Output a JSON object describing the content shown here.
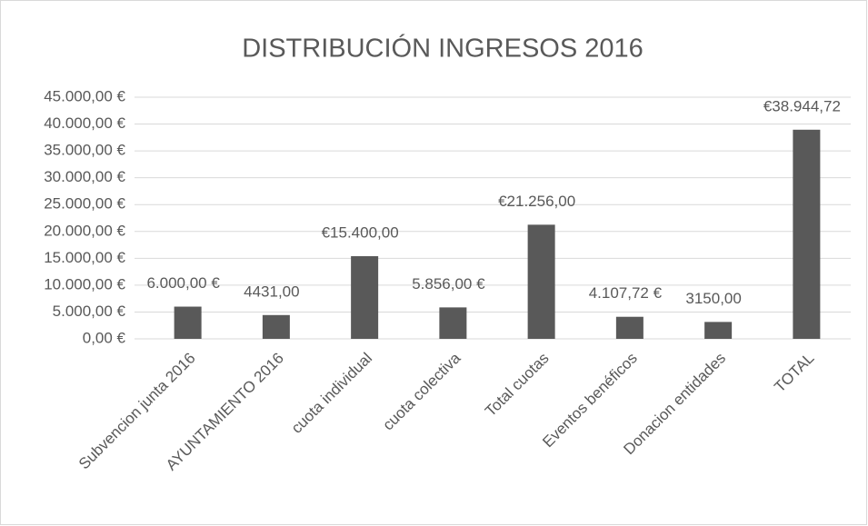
{
  "chart_data": {
    "type": "bar",
    "title": "DISTRIBUCIÓN INGRESOS 2016",
    "categories": [
      "Subvencion junta 2016",
      "AYUNTAMIENTO 2016",
      "cuota individual",
      "cuota colectiva",
      "Total cuotas",
      "Eventos benéficos",
      "Donacion entidades",
      "TOTAL"
    ],
    "values": [
      6000,
      4431,
      15400,
      5856,
      21256,
      4107.72,
      3150,
      38944.72
    ],
    "value_labels": [
      "6.000,00 €",
      "4431,00",
      "€15.400,00",
      "5.856,00 €",
      "€21.256,00",
      "4.107,72 €",
      "3150,00",
      "€38.944,72"
    ],
    "color": "#595959",
    "ylim": [
      0,
      45000
    ],
    "yticks": [
      {
        "value": 0,
        "label": "0,00 €"
      },
      {
        "value": 5000,
        "label": "5.000,00 €"
      },
      {
        "value": 10000,
        "label": "10.000,00 €"
      },
      {
        "value": 15000,
        "label": "15.000,00 €"
      },
      {
        "value": 20000,
        "label": "20.000,00 €"
      },
      {
        "value": 25000,
        "label": "25.000,00 €"
      },
      {
        "value": 30000,
        "label": "30.000,00 €"
      },
      {
        "value": 35000,
        "label": "35.000,00 €"
      },
      {
        "value": 40000,
        "label": "40.000,00 €"
      },
      {
        "value": 45000,
        "label": "45.000,00 €"
      }
    ],
    "grid": true
  }
}
